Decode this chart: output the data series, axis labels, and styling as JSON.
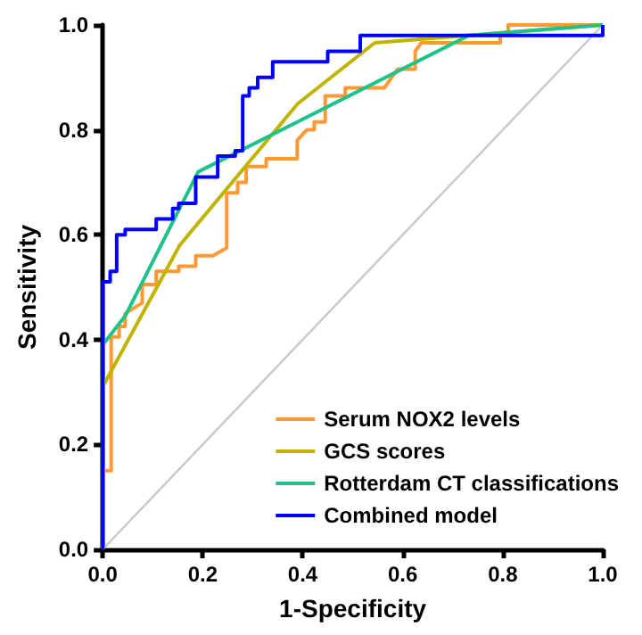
{
  "chart_data": {
    "type": "line",
    "xlabel": "1-Specificity",
    "ylabel": "Sensitivity",
    "xlim": [
      0,
      1
    ],
    "ylim": [
      0,
      1
    ],
    "xticks": [
      {
        "value": 0,
        "label": "0.0"
      },
      0.2,
      0.4,
      0.6,
      0.8,
      {
        "value": 1,
        "label": "1.0"
      }
    ],
    "yticks": [
      {
        "value": 0,
        "label": "0.0"
      },
      0.2,
      0.4,
      0.6,
      0.8,
      {
        "value": 1,
        "label": "1.0"
      }
    ],
    "grid": false,
    "legend": "bottom right",
    "marker": "none",
    "line_style": "solid",
    "series": [
      {
        "name": "Serum NOX2 levels",
        "color": "#ff9933",
        "x": [
          0,
          0,
          0.017,
          0.017,
          0.033,
          0.033,
          0.045,
          0.045,
          0.079,
          0.079,
          0.107,
          0.107,
          0.152,
          0.152,
          0.186,
          0.186,
          0.22,
          0.248,
          0.248,
          0.27,
          0.27,
          0.287,
          0.287,
          0.327,
          0.327,
          0.389,
          0.389,
          0.408,
          0.423,
          0.423,
          0.439,
          0.445,
          0.445,
          0.485,
          0.485,
          0.563,
          0.59,
          0.625,
          0.625,
          0.637,
          0.795,
          0.795,
          0.811,
          0.811,
          1
        ],
        "values": [
          0,
          0.15,
          0.15,
          0.405,
          0.405,
          0.425,
          0.425,
          0.45,
          0.47,
          0.505,
          0.505,
          0.53,
          0.53,
          0.54,
          0.54,
          0.56,
          0.56,
          0.575,
          0.68,
          0.68,
          0.7,
          0.7,
          0.73,
          0.73,
          0.745,
          0.745,
          0.78,
          0.8,
          0.8,
          0.815,
          0.815,
          0.815,
          0.865,
          0.865,
          0.88,
          0.88,
          0.916,
          0.916,
          0.95,
          0.966,
          0.966,
          0.98,
          0.98,
          1,
          1
        ]
      },
      {
        "name": "GCS scores",
        "color": "#c0b400",
        "x": [
          0,
          0,
          0.154,
          0.39,
          0.544,
          0.73,
          1
        ],
        "values": [
          0,
          0.31,
          0.58,
          0.85,
          0.966,
          0.98,
          1
        ]
      },
      {
        "name": "Rotterdam CT classifications",
        "color": "#1ec38c",
        "x": [
          0,
          0,
          0.045,
          0.191,
          0.732,
          1
        ],
        "values": [
          0,
          0.39,
          0.445,
          0.72,
          0.98,
          1
        ]
      },
      {
        "name": "Combined model",
        "color": "#0000ff",
        "x": [
          0,
          0,
          0.015,
          0.015,
          0.028,
          0.028,
          0.045,
          0.045,
          0.107,
          0.107,
          0.14,
          0.14,
          0.152,
          0.152,
          0.167,
          0.167,
          0.186,
          0.186,
          0.23,
          0.23,
          0.265,
          0.265,
          0.28,
          0.28,
          0.293,
          0.293,
          0.31,
          0.31,
          0.34,
          0.34,
          0.45,
          0.45,
          0.515,
          0.515,
          1,
          1
        ],
        "values": [
          0,
          0.51,
          0.51,
          0.53,
          0.53,
          0.6,
          0.6,
          0.61,
          0.61,
          0.63,
          0.63,
          0.65,
          0.65,
          0.66,
          0.66,
          0.66,
          0.66,
          0.71,
          0.71,
          0.75,
          0.75,
          0.76,
          0.76,
          0.865,
          0.865,
          0.88,
          0.88,
          0.9,
          0.9,
          0.93,
          0.93,
          0.95,
          0.95,
          0.98,
          0.98,
          1
        ]
      },
      {
        "color": "#c8c8c8",
        "x": [
          0,
          1
        ],
        "values": [
          0,
          1
        ]
      }
    ]
  }
}
